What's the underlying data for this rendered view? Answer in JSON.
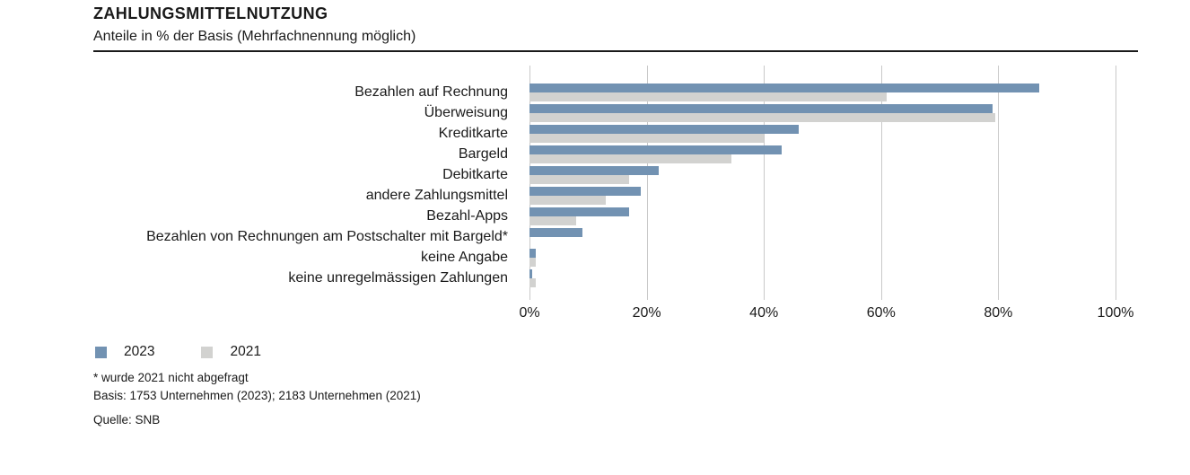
{
  "header": {
    "title": "ZAHLUNGSMITTELNUTZUNG",
    "subtitle": "Anteile in % der Basis (Mehrfachnennung möglich)"
  },
  "chart_data": {
    "type": "bar",
    "orientation": "horizontal",
    "title": "ZAHLUNGSMITTELNUTZUNG",
    "subtitle": "Anteile in % der Basis (Mehrfachnennung möglich)",
    "xlabel": "",
    "ylabel": "",
    "xlim": [
      0,
      100
    ],
    "grid": true,
    "legend_position": "bottom-left",
    "categories": [
      "Bezahlen auf Rechnung",
      "Überweisung",
      "Kreditkarte",
      "Bargeld",
      "Debitkarte",
      "andere Zahlungsmittel",
      "Bezahl-Apps",
      "Bezahlen von Rechnungen am Postschalter mit Bargeld*",
      "keine Angabe",
      "keine unregelmässigen Zahlungen"
    ],
    "series": [
      {
        "name": "2023",
        "color": "#7292b2",
        "values": [
          87,
          79,
          46,
          43,
          22,
          19,
          17,
          9,
          1,
          0.5
        ]
      },
      {
        "name": "2021",
        "color": "#d2d2d0",
        "values": [
          61,
          79.5,
          40,
          34.5,
          17,
          13,
          8,
          null,
          1,
          1
        ]
      }
    ],
    "xticks": [
      {
        "value": 0,
        "label": "0%"
      },
      {
        "value": 20,
        "label": "20%"
      },
      {
        "value": 40,
        "label": "40%"
      },
      {
        "value": 60,
        "label": "60%"
      },
      {
        "value": 80,
        "label": "80%"
      },
      {
        "value": 100,
        "label": "100%"
      }
    ]
  },
  "footnotes": {
    "asterisk": "* wurde 2021 nicht abgefragt",
    "basis": "Basis: 1753 Unternehmen (2023); 2183 Unternehmen (2021)",
    "source": "Quelle: SNB"
  },
  "colors": {
    "bar_2023": "#7292b2",
    "bar_2021": "#d2d2d0",
    "gridline": "#c9c9c9",
    "text": "#1a1a1a",
    "rule": "#1a1a1a",
    "background": "#ffffff"
  }
}
